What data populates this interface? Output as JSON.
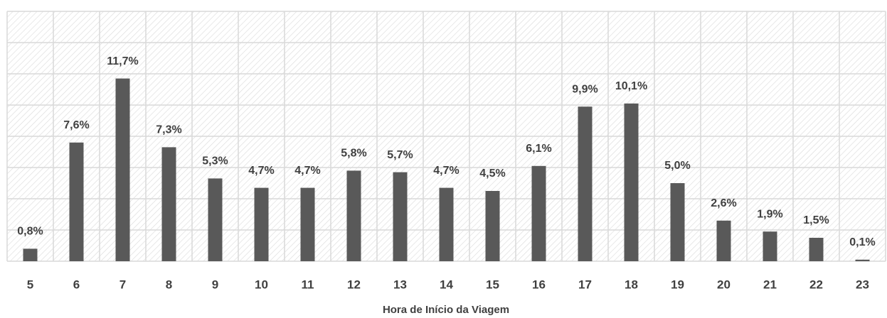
{
  "chart_data": {
    "type": "bar",
    "x_label": "Hora de Início da Viagem",
    "categories": [
      "5",
      "6",
      "7",
      "8",
      "9",
      "10",
      "11",
      "12",
      "13",
      "14",
      "15",
      "16",
      "17",
      "18",
      "19",
      "20",
      "21",
      "22",
      "23"
    ],
    "values": [
      0.8,
      7.6,
      11.7,
      7.3,
      5.3,
      4.7,
      4.7,
      5.8,
      5.7,
      4.7,
      4.5,
      6.1,
      9.9,
      10.1,
      5.0,
      2.6,
      1.9,
      1.5,
      0.1
    ],
    "value_labels": [
      "0,8%",
      "7,6%",
      "11,7%",
      "7,3%",
      "5,3%",
      "4,7%",
      "4,7%",
      "5,8%",
      "5,7%",
      "4,7%",
      "4,5%",
      "6,1%",
      "9,9%",
      "10,1%",
      "5,0%",
      "2,6%",
      "1,9%",
      "1,5%",
      "0,1%"
    ],
    "color": "#595959",
    "ylim": [
      0,
      16
    ],
    "yticks": [
      0,
      2,
      4,
      6,
      8,
      10,
      12,
      14,
      16
    ],
    "grid": true
  }
}
